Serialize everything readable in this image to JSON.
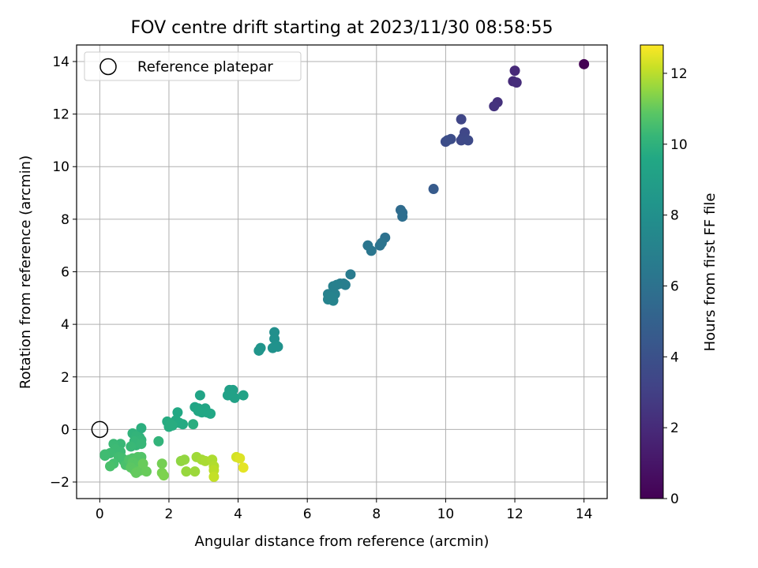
{
  "chart_data": {
    "type": "scatter",
    "title": "FOV centre drift starting at 2023/11/30 08:58:55",
    "xlabel": "Angular distance from reference (arcmin)",
    "ylabel": "Rotation from reference (arcmin)",
    "xlim": [
      -0.67,
      14.67
    ],
    "ylim": [
      -2.63,
      14.63
    ],
    "xticks": [
      0,
      2,
      4,
      6,
      8,
      10,
      12,
      14
    ],
    "yticks": [
      -2,
      0,
      2,
      4,
      6,
      8,
      10,
      12,
      14
    ],
    "grid": true,
    "legend": {
      "position": "top-left",
      "entries": [
        "Reference platepar"
      ]
    },
    "reference_point": {
      "x": 0,
      "y": 0
    },
    "colorbar": {
      "label": "Hours from first FF file",
      "colormap": "viridis",
      "range": [
        0,
        12.8
      ],
      "ticks": [
        0,
        2,
        4,
        6,
        8,
        10,
        12
      ]
    },
    "points": [
      [
        14.0,
        13.9,
        0.0
      ],
      [
        12.0,
        13.65,
        1.9
      ],
      [
        11.95,
        13.25,
        2.0
      ],
      [
        12.05,
        13.2,
        2.1
      ],
      [
        11.5,
        12.45,
        2.3
      ],
      [
        11.4,
        12.3,
        2.4
      ],
      [
        10.45,
        11.8,
        3.3
      ],
      [
        10.55,
        11.3,
        3.4
      ],
      [
        10.5,
        11.1,
        3.45
      ],
      [
        10.45,
        11.0,
        3.5
      ],
      [
        10.65,
        11.0,
        3.55
      ],
      [
        10.0,
        10.95,
        3.7
      ],
      [
        10.15,
        11.05,
        3.75
      ],
      [
        10.05,
        11.0,
        3.8
      ],
      [
        9.65,
        9.15,
        4.6
      ],
      [
        8.7,
        8.35,
        5.6
      ],
      [
        8.75,
        8.25,
        5.7
      ],
      [
        8.75,
        8.1,
        5.8
      ],
      [
        8.25,
        7.3,
        6.0
      ],
      [
        8.1,
        7.0,
        6.1
      ],
      [
        8.15,
        7.1,
        6.15
      ],
      [
        7.75,
        7.0,
        6.2
      ],
      [
        7.85,
        6.8,
        6.3
      ],
      [
        7.25,
        5.9,
        6.6
      ],
      [
        7.05,
        5.55,
        6.7
      ],
      [
        6.95,
        5.55,
        6.75
      ],
      [
        7.1,
        5.5,
        6.8
      ],
      [
        6.75,
        5.45,
        6.9
      ],
      [
        6.85,
        5.5,
        6.9
      ],
      [
        6.6,
        5.15,
        7.0
      ],
      [
        6.8,
        5.15,
        7.0
      ],
      [
        6.6,
        4.95,
        7.1
      ],
      [
        6.75,
        4.9,
        7.2
      ],
      [
        6.7,
        5.05,
        7.1
      ],
      [
        5.05,
        3.7,
        7.9
      ],
      [
        5.05,
        3.45,
        8.0
      ],
      [
        5.1,
        3.2,
        8.05
      ],
      [
        5.0,
        3.1,
        8.1
      ],
      [
        5.15,
        3.15,
        8.15
      ],
      [
        4.65,
        3.1,
        8.3
      ],
      [
        4.6,
        3.0,
        8.35
      ],
      [
        3.75,
        1.5,
        9.0
      ],
      [
        3.85,
        1.5,
        9.05
      ],
      [
        3.8,
        1.3,
        9.1
      ],
      [
        3.9,
        1.2,
        9.15
      ],
      [
        4.15,
        1.3,
        9.2
      ],
      [
        3.7,
        1.3,
        9.1
      ],
      [
        2.9,
        1.3,
        9.3
      ],
      [
        2.85,
        0.8,
        9.35
      ],
      [
        2.75,
        0.85,
        9.4
      ],
      [
        3.05,
        0.8,
        9.4
      ],
      [
        2.95,
        0.65,
        9.45
      ],
      [
        3.1,
        0.65,
        9.5
      ],
      [
        3.2,
        0.6,
        9.5
      ],
      [
        2.85,
        0.7,
        9.55
      ],
      [
        2.25,
        0.65,
        9.6
      ],
      [
        2.2,
        0.35,
        9.65
      ],
      [
        2.4,
        0.2,
        9.7
      ],
      [
        2.3,
        0.25,
        9.7
      ],
      [
        1.95,
        0.3,
        9.75
      ],
      [
        2.0,
        0.1,
        9.8
      ],
      [
        2.1,
        0.15,
        9.8
      ],
      [
        2.7,
        0.2,
        9.85
      ],
      [
        2.05,
        0.2,
        9.8
      ],
      [
        1.2,
        0.05,
        9.9
      ],
      [
        1.7,
        -0.45,
        10.1
      ],
      [
        1.15,
        -0.3,
        10.0
      ],
      [
        0.95,
        -0.15,
        10.05
      ],
      [
        1.05,
        -0.25,
        10.1
      ],
      [
        1.2,
        -0.4,
        10.15
      ],
      [
        1.0,
        -0.45,
        10.2
      ],
      [
        1.05,
        -0.6,
        10.2
      ],
      [
        1.2,
        -0.55,
        10.25
      ],
      [
        0.9,
        -0.65,
        10.3
      ],
      [
        0.6,
        -0.55,
        10.3
      ],
      [
        0.4,
        -0.55,
        10.35
      ],
      [
        0.45,
        -0.75,
        10.4
      ],
      [
        0.6,
        -0.85,
        10.4
      ],
      [
        0.3,
        -0.9,
        10.45
      ],
      [
        0.15,
        -0.95,
        10.5
      ],
      [
        0.15,
        -1.0,
        10.5
      ],
      [
        0.55,
        -1.05,
        10.55
      ],
      [
        0.65,
        -1.1,
        10.6
      ],
      [
        0.7,
        -1.2,
        10.6
      ],
      [
        0.4,
        -1.3,
        10.65
      ],
      [
        0.3,
        -1.4,
        10.7
      ],
      [
        0.75,
        -1.35,
        10.7
      ],
      [
        0.85,
        -1.15,
        10.75
      ],
      [
        0.95,
        -1.1,
        10.75
      ],
      [
        1.1,
        -1.05,
        10.8
      ],
      [
        1.2,
        -1.05,
        10.8
      ],
      [
        0.95,
        -1.25,
        10.85
      ],
      [
        1.05,
        -1.35,
        10.85
      ],
      [
        0.9,
        -1.45,
        10.9
      ],
      [
        1.0,
        -1.55,
        10.9
      ],
      [
        1.1,
        -1.6,
        10.95
      ],
      [
        1.05,
        -1.65,
        11.0
      ],
      [
        1.2,
        -1.55,
        11.0
      ],
      [
        1.35,
        -1.6,
        11.05
      ],
      [
        1.25,
        -1.3,
        11.05
      ],
      [
        1.8,
        -1.3,
        11.2
      ],
      [
        1.8,
        -1.65,
        11.25
      ],
      [
        1.85,
        -1.75,
        11.3
      ],
      [
        2.35,
        -1.2,
        11.5
      ],
      [
        2.45,
        -1.15,
        11.55
      ],
      [
        2.5,
        -1.6,
        11.6
      ],
      [
        2.75,
        -1.6,
        11.65
      ],
      [
        2.8,
        -1.05,
        11.7
      ],
      [
        2.95,
        -1.15,
        11.75
      ],
      [
        3.05,
        -1.2,
        11.8
      ],
      [
        3.25,
        -1.15,
        11.85
      ],
      [
        3.3,
        -1.4,
        11.9
      ],
      [
        3.3,
        -1.55,
        12.0
      ],
      [
        3.3,
        -1.8,
        12.1
      ],
      [
        3.95,
        -1.05,
        12.3
      ],
      [
        4.05,
        -1.1,
        12.4
      ],
      [
        4.15,
        -1.45,
        12.5
      ]
    ]
  }
}
